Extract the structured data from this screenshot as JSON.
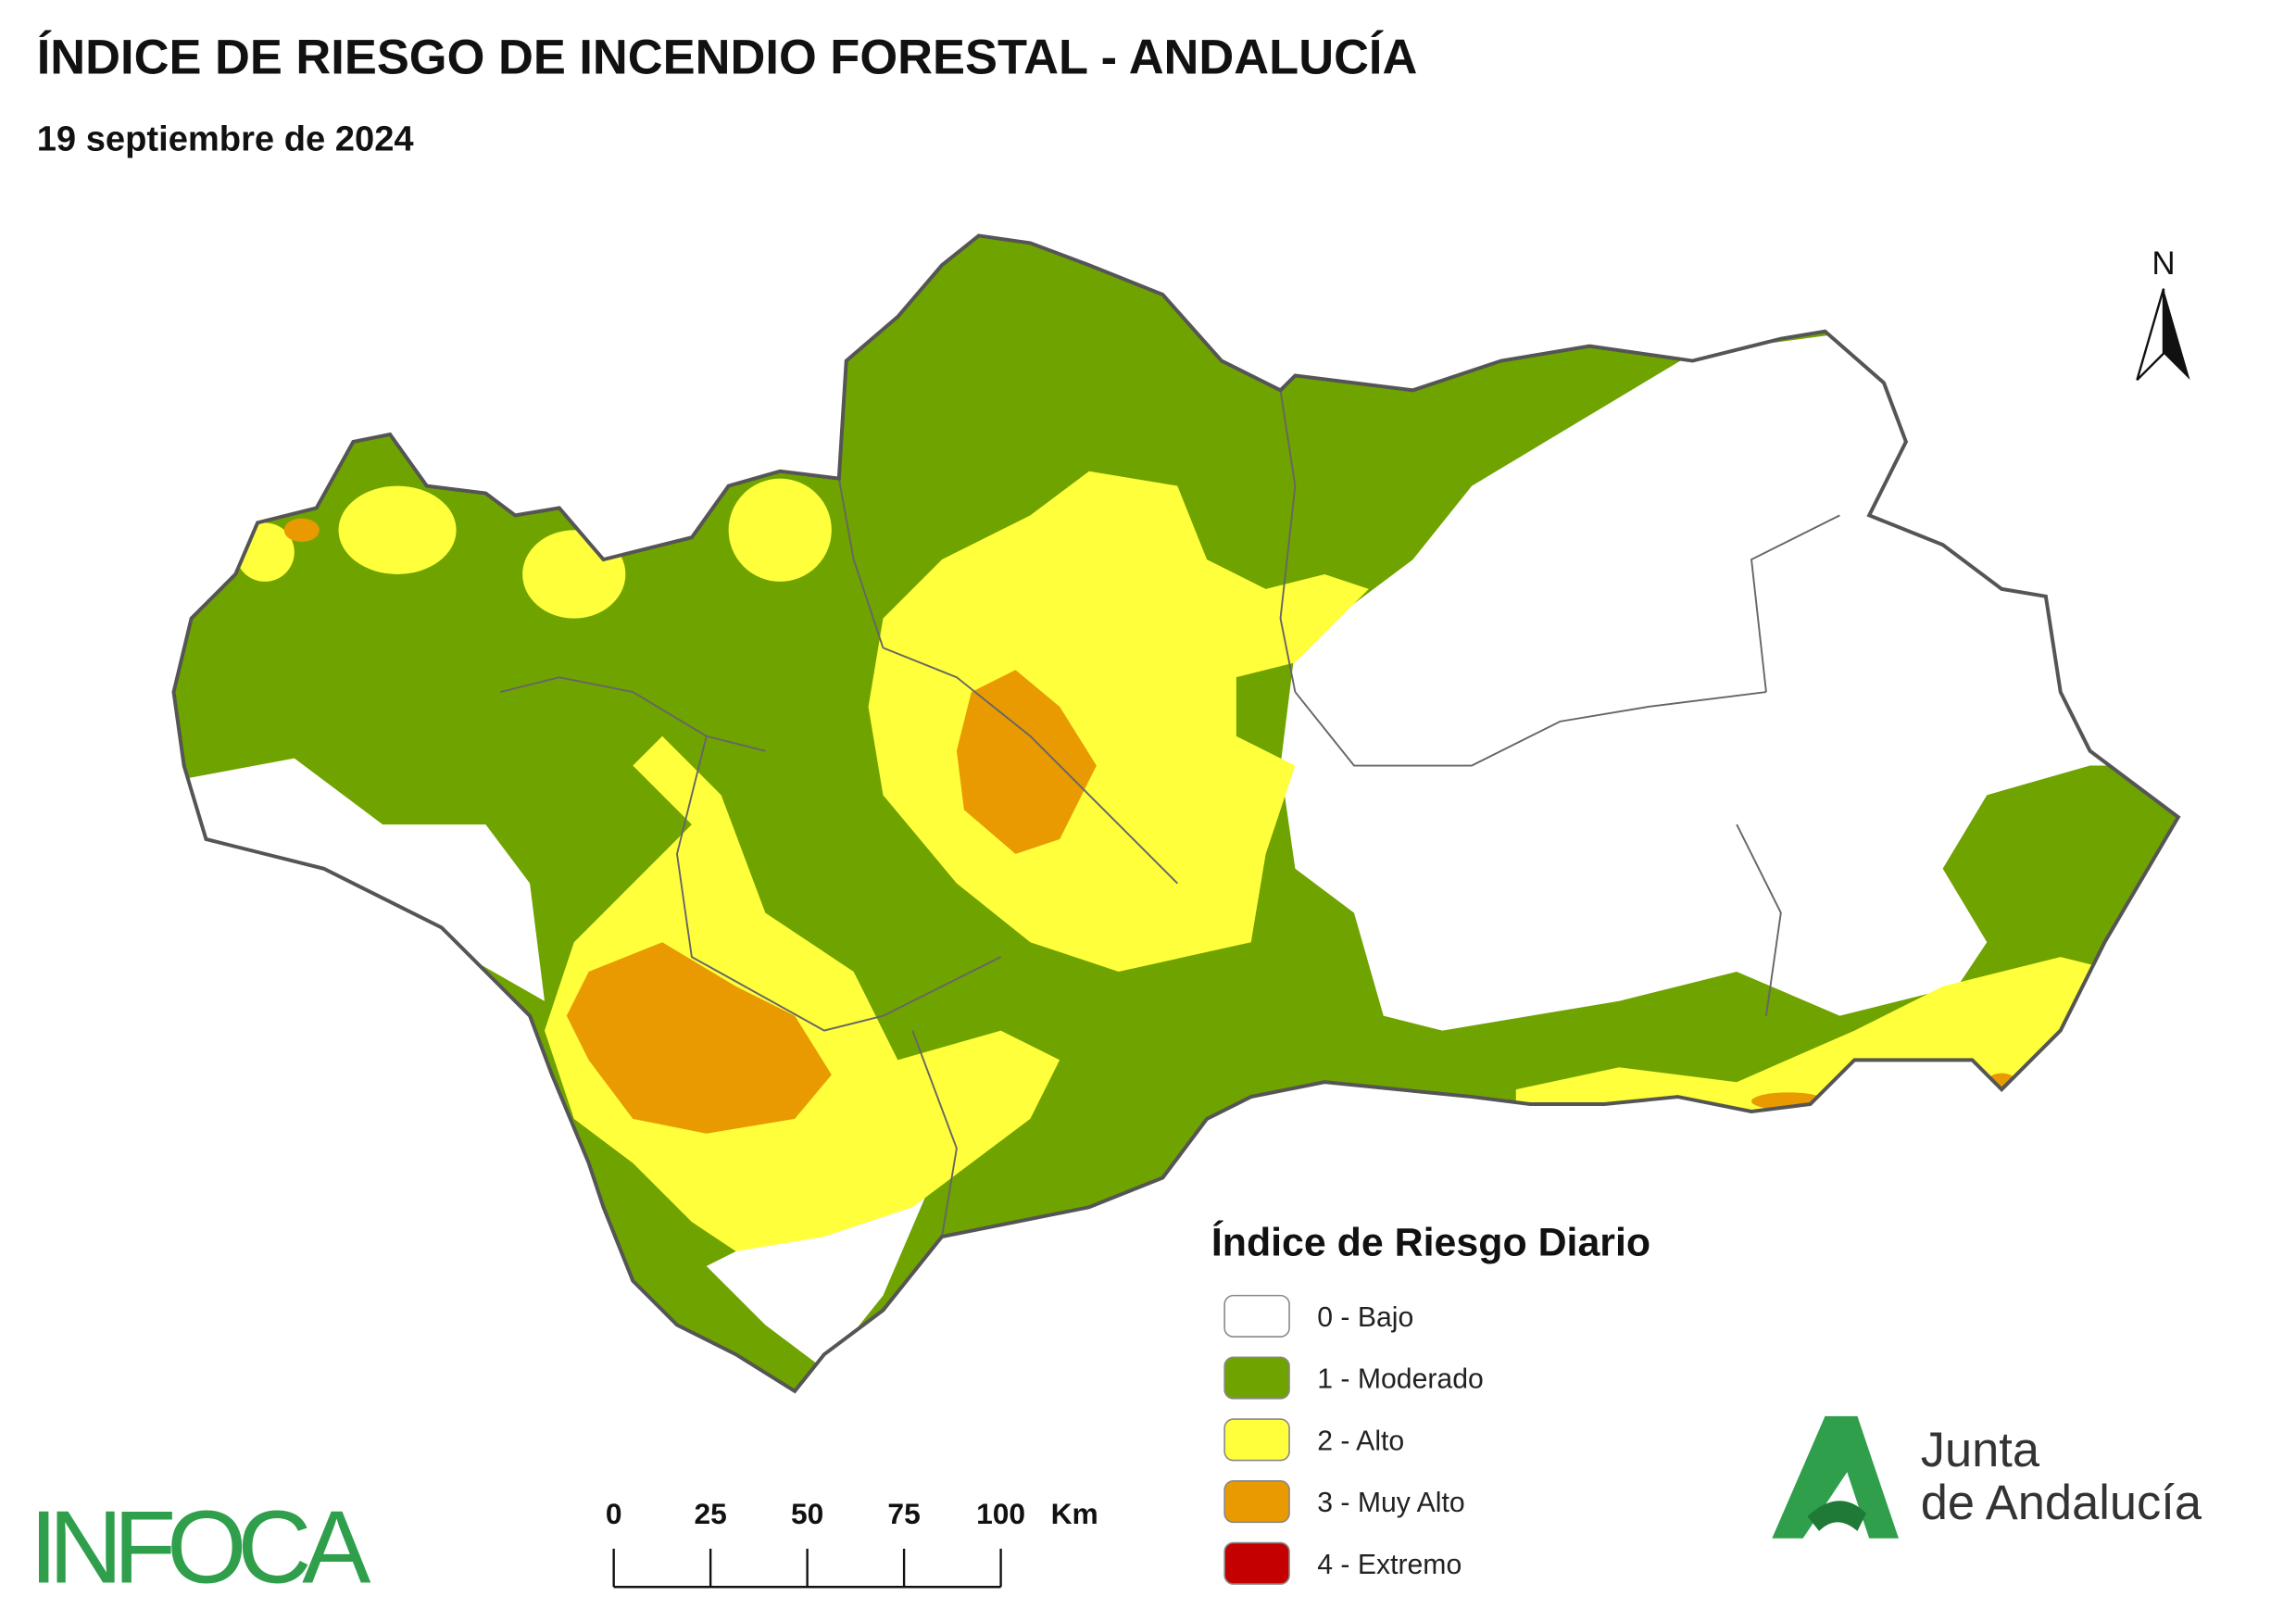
{
  "header": {
    "title": "ÍNDICE DE RIESGO DE INCENDIO FORESTAL - ANDALUCÍA",
    "subtitle": "19 septiembre de 2024"
  },
  "north_arrow": {
    "label": "N"
  },
  "legend": {
    "title": "Índice de Riesgo Diario",
    "items": [
      {
        "label": "0 - Bajo",
        "color": "#ffffff"
      },
      {
        "label": "1 - Moderado",
        "color": "#6fa300"
      },
      {
        "label": "2 - Alto",
        "color": "#ffff3c"
      },
      {
        "label": "3 - Muy Alto",
        "color": "#e89a00"
      },
      {
        "label": "4 - Extremo",
        "color": "#c40000"
      }
    ]
  },
  "scale_bar": {
    "ticks": [
      0,
      25,
      50,
      75,
      100
    ],
    "unit": "Km"
  },
  "logos": {
    "infoca": "INFOCA",
    "junta_line1": "Junta",
    "junta_line2": "de Andalucía"
  }
}
